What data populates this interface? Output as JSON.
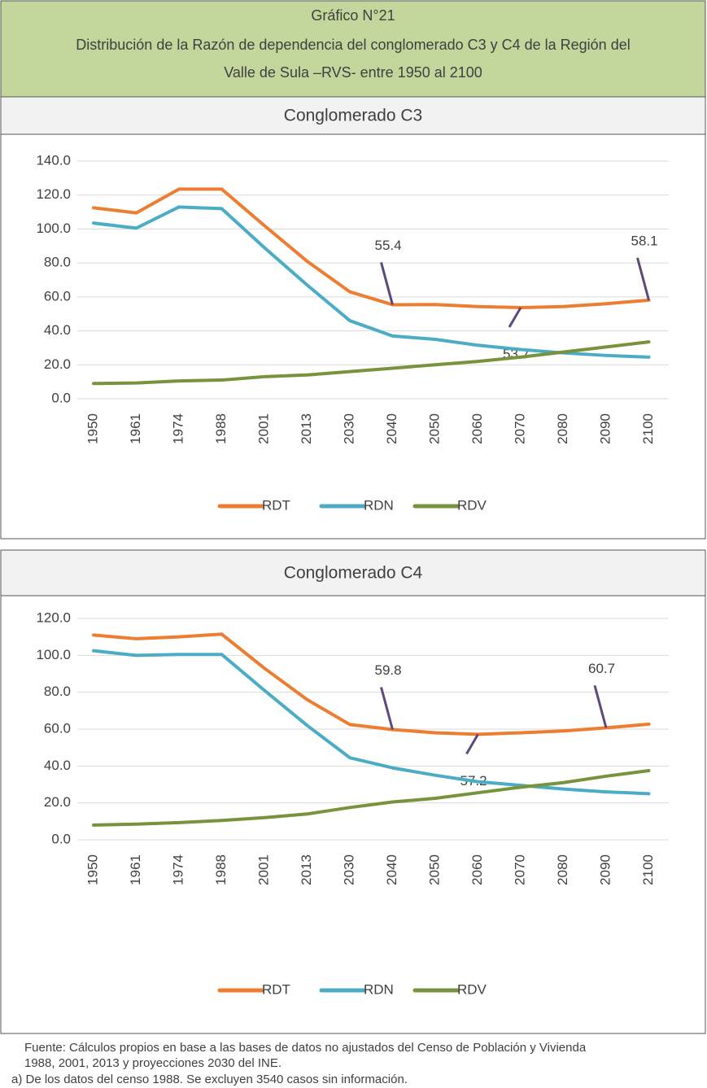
{
  "header": {
    "title": "Gráfico N°21",
    "subtitle_lines": [
      "Distribución de la Razón de dependencia del conglomerado C3 y C4 de  la Región del",
      "Valle de Sula –RVS- entre 1950 al 2100"
    ]
  },
  "chart_data": [
    {
      "type": "line",
      "title": "Conglomerado C3",
      "categories": [
        "1950",
        "1961",
        "1974",
        "1988",
        "2001",
        "2013",
        "2030",
        "2040",
        "2050",
        "2060",
        "2070",
        "2080",
        "2090",
        "2100"
      ],
      "series": [
        {
          "name": "RDT",
          "color": "#ed7d31",
          "values": [
            112.5,
            109.5,
            123.5,
            123.5,
            102,
            81,
            63,
            55.4,
            55.5,
            54.3,
            53.7,
            54.3,
            56,
            58.1
          ],
          "value_labels": [
            null,
            null,
            null,
            null,
            null,
            null,
            null,
            "55.4",
            null,
            null,
            "53.7",
            null,
            null,
            "58.1"
          ]
        },
        {
          "name": "RDN",
          "color": "#4bacc6",
          "values": [
            103.5,
            100.5,
            113,
            112,
            89,
            67,
            46,
            37,
            35,
            31.5,
            29,
            27,
            25.5,
            24.5
          ]
        },
        {
          "name": "RDV",
          "color": "#77933c",
          "values": [
            9,
            9.3,
            10.5,
            11,
            13,
            14,
            16,
            18,
            20,
            22,
            24.5,
            27.5,
            30.5,
            33.5
          ]
        }
      ],
      "ylim": [
        0,
        140
      ],
      "yticks": [
        {
          "value": 0,
          "label": "0.0"
        },
        {
          "value": 20,
          "label": "20.0"
        },
        {
          "value": 40,
          "label": "40.0"
        },
        {
          "value": 60,
          "label": "60.0"
        },
        {
          "value": 80,
          "label": "80.0"
        },
        {
          "value": 100,
          "label": "100.0"
        },
        {
          "value": 120,
          "label": "120.0"
        },
        {
          "value": 140,
          "label": "140.0"
        }
      ],
      "grid": true,
      "legend": "bottom"
    },
    {
      "type": "line",
      "title": "Conglomerado C4",
      "categories": [
        "1950",
        "1961",
        "1974",
        "1988",
        "2001",
        "2013",
        "2030",
        "2040",
        "2050",
        "2060",
        "2070",
        "2080",
        "2090",
        "2100"
      ],
      "series": [
        {
          "name": "RDT",
          "color": "#ed7d31",
          "values": [
            111,
            109,
            110,
            111.5,
            93,
            76,
            62.5,
            59.8,
            58,
            57.2,
            58,
            59,
            60.7,
            62.7
          ],
          "value_labels": [
            null,
            null,
            null,
            null,
            null,
            null,
            null,
            "59.8",
            null,
            "57.2",
            null,
            null,
            "60.7",
            null
          ]
        },
        {
          "name": "RDN",
          "color": "#4bacc6",
          "values": [
            102.5,
            100,
            100.5,
            100.5,
            81,
            62,
            44.5,
            39,
            35,
            31.5,
            29.5,
            27.5,
            26,
            25
          ]
        },
        {
          "name": "RDV",
          "color": "#77933c",
          "values": [
            8,
            8.5,
            9.3,
            10.5,
            12,
            14,
            17.5,
            20.5,
            22.5,
            25.5,
            28.5,
            31,
            34.5,
            37.5
          ]
        }
      ],
      "ylim": [
        0,
        120
      ],
      "yticks": [
        {
          "value": 0,
          "label": "0.0"
        },
        {
          "value": 20,
          "label": "20.0"
        },
        {
          "value": 40,
          "label": "40.0"
        },
        {
          "value": 60,
          "label": "60.0"
        },
        {
          "value": 80,
          "label": "80.0"
        },
        {
          "value": 100,
          "label": "100.0"
        },
        {
          "value": 120,
          "label": "120.0"
        }
      ],
      "grid": true,
      "legend": "bottom"
    }
  ],
  "footer": {
    "lines": [
      "Fuente: Cálculos propios en base a las bases de datos no ajustados del Censo de Población y Vivienda",
      "1988, 2001, 2013 y proyecciones 2030 del INE.",
      "a) De los datos del censo 1988. Se excluyen 3540 casos  sin información."
    ]
  }
}
